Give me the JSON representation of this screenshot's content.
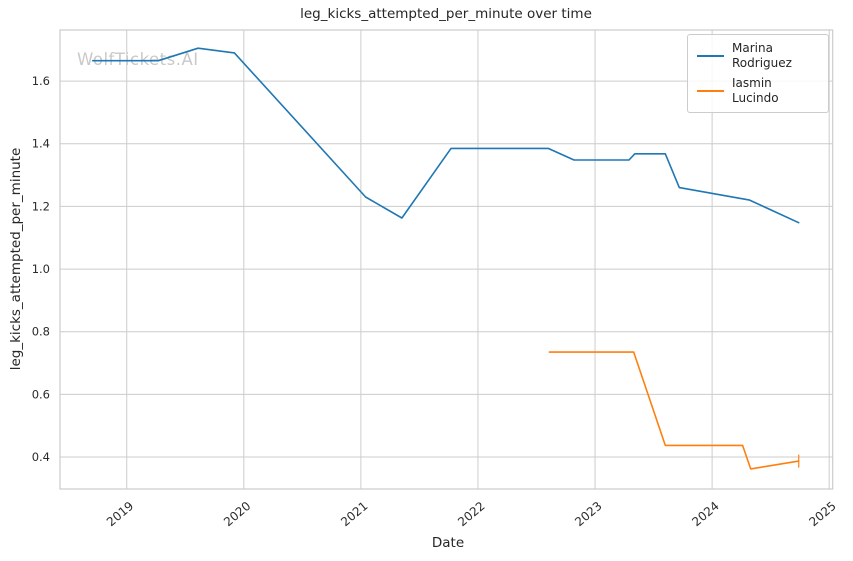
{
  "figure": {
    "watermark": "WolfTickets.AI"
  },
  "chart_data": {
    "type": "line",
    "title": "leg_kicks_attempted_per_minute over time",
    "xlabel": "Date",
    "ylabel": "leg_kicks_attempted_per_minute",
    "xlim": [
      2018.43,
      2025.03
    ],
    "ylim": [
      0.298,
      1.763
    ],
    "grid": true,
    "legend_position": "upper right",
    "x_ticks": [
      {
        "value": 2019,
        "label": "2019"
      },
      {
        "value": 2020,
        "label": "2020"
      },
      {
        "value": 2021,
        "label": "2021"
      },
      {
        "value": 2022,
        "label": "2022"
      },
      {
        "value": 2023,
        "label": "2023"
      },
      {
        "value": 2024,
        "label": "2024"
      },
      {
        "value": 2025,
        "label": "2025"
      }
    ],
    "y_ticks": [
      {
        "value": 0.4,
        "label": "0.4"
      },
      {
        "value": 0.6,
        "label": "0.6"
      },
      {
        "value": 0.8,
        "label": "0.8"
      },
      {
        "value": 1.0,
        "label": "1.0"
      },
      {
        "value": 1.2,
        "label": "1.2"
      },
      {
        "value": 1.4,
        "label": "1.4"
      },
      {
        "value": 1.6,
        "label": "1.6"
      }
    ],
    "series": [
      {
        "name": "Marina Rodriguez",
        "color": "#1f77b4",
        "end_cap": false,
        "points": [
          [
            2018.71,
            1.665
          ],
          [
            2019.27,
            1.665
          ],
          [
            2019.61,
            1.705
          ],
          [
            2019.92,
            1.69
          ],
          [
            2021.04,
            1.23
          ],
          [
            2021.35,
            1.163
          ],
          [
            2021.77,
            1.385
          ],
          [
            2022.6,
            1.385
          ],
          [
            2022.82,
            1.348
          ],
          [
            2023.29,
            1.348
          ],
          [
            2023.34,
            1.368
          ],
          [
            2023.6,
            1.368
          ],
          [
            2023.72,
            1.26
          ],
          [
            2024.32,
            1.22
          ],
          [
            2024.74,
            1.148
          ]
        ]
      },
      {
        "name": "Iasmin Lucindo",
        "color": "#ff7f0e",
        "end_cap": true,
        "points": [
          [
            2022.61,
            0.735
          ],
          [
            2023.33,
            0.735
          ],
          [
            2023.6,
            0.437
          ],
          [
            2024.26,
            0.437
          ],
          [
            2024.33,
            0.362
          ],
          [
            2024.74,
            0.387
          ]
        ]
      }
    ],
    "colors": {
      "grid": "#cccccc",
      "tick_text": "#2b2b2b",
      "watermark": "#c9c9c9"
    }
  }
}
